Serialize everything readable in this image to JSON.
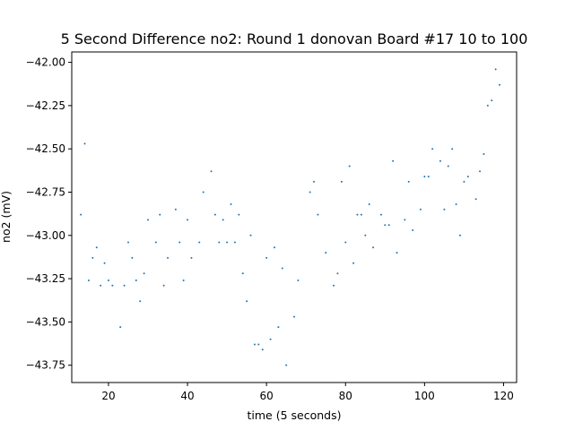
{
  "chart_data": {
    "type": "scatter",
    "title": "5 Second Difference no2: Round 1 donovan Board #17 10 to 100",
    "xlabel": "time (5 seconds)",
    "ylabel": "no2 (mV)",
    "xlim": [
      10.7,
      123.3
    ],
    "ylim": [
      -43.85,
      -41.94
    ],
    "xticks": [
      20,
      40,
      60,
      80,
      100,
      120
    ],
    "xtick_labels": [
      "20",
      "40",
      "60",
      "80",
      "100",
      "120"
    ],
    "yticks": [
      -43.75,
      -43.5,
      -43.25,
      -43.0,
      -42.75,
      -42.5,
      -42.25,
      -42.0
    ],
    "ytick_labels": [
      "−43.75",
      "−43.50",
      "−43.25",
      "−43.00",
      "−42.75",
      "−42.50",
      "−42.25",
      "−42.00"
    ],
    "grid": false,
    "color": "#1f77b4",
    "series": [
      {
        "points": [
          [
            13,
            -42.88
          ],
          [
            14,
            -42.47
          ],
          [
            15,
            -43.26
          ],
          [
            16,
            -43.13
          ],
          [
            17,
            -43.07
          ],
          [
            18,
            -43.29
          ],
          [
            19,
            -43.16
          ],
          [
            20,
            -43.26
          ],
          [
            21,
            -43.29
          ],
          [
            23,
            -43.53
          ],
          [
            24,
            -43.29
          ],
          [
            25,
            -43.04
          ],
          [
            26,
            -43.13
          ],
          [
            27,
            -43.26
          ],
          [
            28,
            -43.38
          ],
          [
            29,
            -43.22
          ],
          [
            30,
            -42.91
          ],
          [
            32,
            -43.04
          ],
          [
            33,
            -42.88
          ],
          [
            34,
            -43.29
          ],
          [
            35,
            -43.13
          ],
          [
            37,
            -42.85
          ],
          [
            38,
            -43.04
          ],
          [
            39,
            -43.26
          ],
          [
            40,
            -42.91
          ],
          [
            41,
            -43.13
          ],
          [
            43,
            -43.04
          ],
          [
            44,
            -42.75
          ],
          [
            46,
            -42.63
          ],
          [
            47,
            -42.88
          ],
          [
            48,
            -43.04
          ],
          [
            49,
            -42.91
          ],
          [
            50,
            -43.04
          ],
          [
            51,
            -42.82
          ],
          [
            52,
            -43.04
          ],
          [
            53,
            -42.88
          ],
          [
            54,
            -43.22
          ],
          [
            55,
            -43.38
          ],
          [
            56,
            -43.0
          ],
          [
            57,
            -43.63
          ],
          [
            58,
            -43.63
          ],
          [
            59,
            -43.66
          ],
          [
            60,
            -43.13
          ],
          [
            61,
            -43.6
          ],
          [
            62,
            -43.07
          ],
          [
            63,
            -43.53
          ],
          [
            64,
            -43.19
          ],
          [
            65,
            -43.75
          ],
          [
            67,
            -43.47
          ],
          [
            68,
            -43.26
          ],
          [
            71,
            -42.75
          ],
          [
            72,
            -42.69
          ],
          [
            73,
            -42.88
          ],
          [
            75,
            -43.1
          ],
          [
            77,
            -43.29
          ],
          [
            78,
            -43.22
          ],
          [
            79,
            -42.69
          ],
          [
            80,
            -43.04
          ],
          [
            81,
            -42.6
          ],
          [
            82,
            -43.16
          ],
          [
            83,
            -42.88
          ],
          [
            84,
            -42.88
          ],
          [
            85,
            -43.0
          ],
          [
            86,
            -42.82
          ],
          [
            87,
            -43.07
          ],
          [
            89,
            -42.88
          ],
          [
            90,
            -42.94
          ],
          [
            91,
            -42.94
          ],
          [
            92,
            -42.57
          ],
          [
            93,
            -43.1
          ],
          [
            95,
            -42.91
          ],
          [
            96,
            -42.69
          ],
          [
            97,
            -42.97
          ],
          [
            99,
            -42.85
          ],
          [
            100,
            -42.66
          ],
          [
            101,
            -42.66
          ],
          [
            102,
            -42.5
          ],
          [
            104,
            -42.57
          ],
          [
            105,
            -42.85
          ],
          [
            106,
            -42.6
          ],
          [
            107,
            -42.5
          ],
          [
            108,
            -42.82
          ],
          [
            109,
            -43.0
          ],
          [
            110,
            -42.69
          ],
          [
            111,
            -42.66
          ],
          [
            113,
            -42.79
          ],
          [
            114,
            -42.63
          ],
          [
            115,
            -42.53
          ],
          [
            116,
            -42.25
          ],
          [
            117,
            -42.22
          ],
          [
            118,
            -42.04
          ],
          [
            119,
            -42.13
          ]
        ]
      }
    ]
  }
}
